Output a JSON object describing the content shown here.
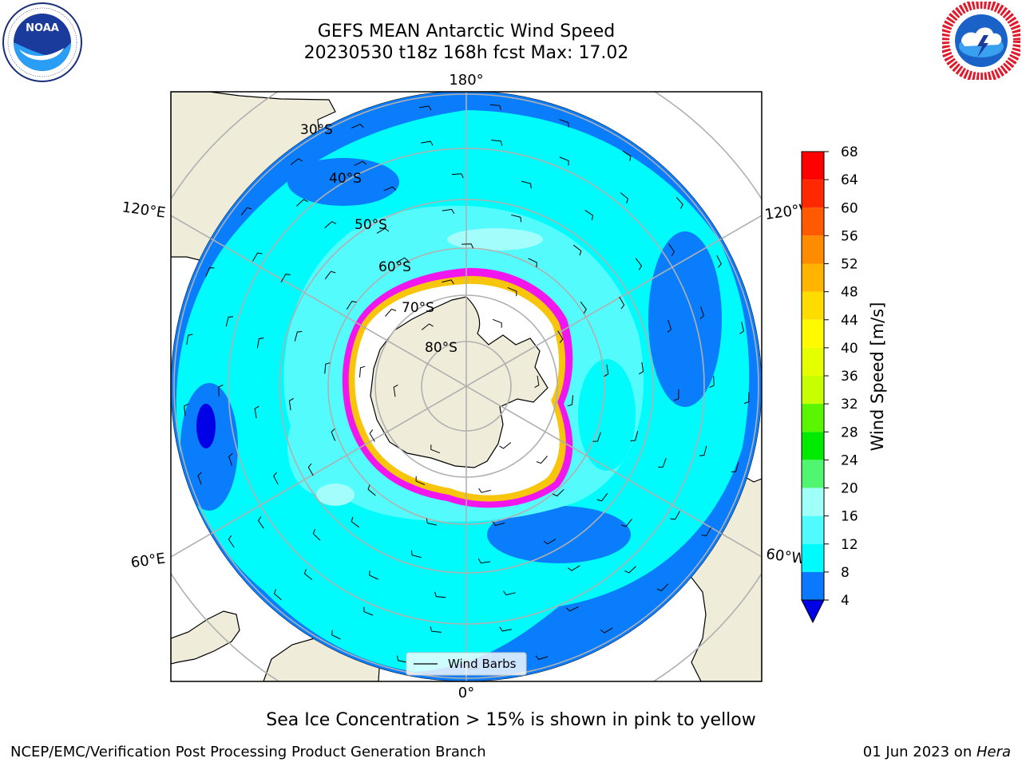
{
  "header": {
    "title": "GEFS MEAN Antarctic Wind Speed",
    "subtitle": "20230530 t18z 168h fcst   Max: 17.02"
  },
  "logos": {
    "left": {
      "name": "NOAA",
      "ring_text": "NATIONAL OCEANIC AND ATMOSPHERIC ADMINISTRATION",
      "bottom_text": "U.S. DEPARTMENT OF COMMERCE"
    },
    "right": {
      "ring_text": "NATIONAL WEATHER SERVICE"
    }
  },
  "map": {
    "projection": "South polar stereographic",
    "lon_labels": {
      "top": "180°",
      "left_upper": "120°E",
      "right_upper": "120°W",
      "left_lower": "60°E",
      "right_lower": "60°W",
      "bottom": "0°"
    },
    "lat_labels": [
      "30°S",
      "40°S",
      "50°S",
      "60°S",
      "70°S",
      "80°S"
    ],
    "legend_label": "Wind Barbs",
    "colors": {
      "land": "#efecda",
      "ocean_4_8": "#0a7dfd",
      "ocean_8_12": "#00fbfd",
      "ocean_12_16": "#53fbfd",
      "ocean_16_20": "#a3fdfb",
      "sea_ice": "#ffffff",
      "ice_edge_low": "#f016ed",
      "ice_edge_high": "#f7c60c",
      "grid": "#b0b0b0"
    }
  },
  "colorbar": {
    "label": "Wind Speed [m/s]",
    "ticks": [
      "68",
      "64",
      "60",
      "56",
      "52",
      "48",
      "44",
      "40",
      "36",
      "32",
      "28",
      "24",
      "20",
      "16",
      "12",
      "8",
      "4"
    ],
    "bins": [
      {
        "range": [
          64,
          68
        ],
        "color": "#ff0000"
      },
      {
        "range": [
          60,
          64
        ],
        "color": "#ff2800"
      },
      {
        "range": [
          56,
          60
        ],
        "color": "#ff5a00"
      },
      {
        "range": [
          52,
          56
        ],
        "color": "#ff8c00"
      },
      {
        "range": [
          48,
          52
        ],
        "color": "#ffb400"
      },
      {
        "range": [
          44,
          48
        ],
        "color": "#ffdc00"
      },
      {
        "range": [
          40,
          44
        ],
        "color": "#fffa00"
      },
      {
        "range": [
          36,
          40
        ],
        "color": "#e6ff00"
      },
      {
        "range": [
          32,
          36
        ],
        "color": "#c8ff00"
      },
      {
        "range": [
          28,
          32
        ],
        "color": "#5af500"
      },
      {
        "range": [
          24,
          28
        ],
        "color": "#00eb00"
      },
      {
        "range": [
          20,
          24
        ],
        "color": "#50f570"
      },
      {
        "range": [
          16,
          20
        ],
        "color": "#a0fff8"
      },
      {
        "range": [
          12,
          16
        ],
        "color": "#50fbfd"
      },
      {
        "range": [
          8,
          12
        ],
        "color": "#00fbff"
      },
      {
        "range": [
          4,
          8
        ],
        "color": "#0a78ff"
      }
    ],
    "under_color": "#0000e6"
  },
  "notes": {
    "sea_ice": "Sea Ice Concentration > 15% is shown in pink to yellow",
    "credit": "NCEP/EMC/Verification Post Processing Product Generation Branch",
    "date_prefix": "01 Jun 2023 on ",
    "machine": "Hera"
  }
}
